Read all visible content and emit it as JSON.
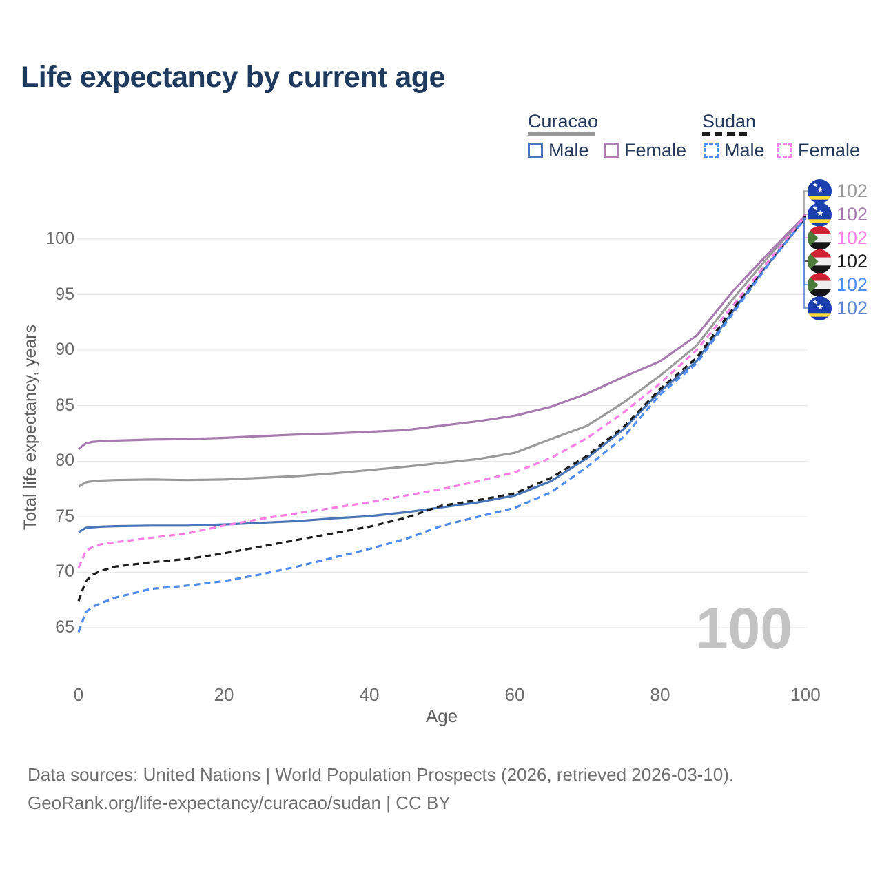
{
  "title": "Life expectancy by current age",
  "legend": {
    "countries": [
      {
        "name": "Curacao",
        "line_style": "solid",
        "line_color": "#9a9a9a",
        "sexes": [
          {
            "label": "Male",
            "color": "#4a76b8"
          },
          {
            "label": "Female",
            "color": "#b07fb4"
          }
        ]
      },
      {
        "name": "Sudan",
        "line_style": "dashed",
        "line_color": "#1c1c1c",
        "sexes": [
          {
            "label": "Male",
            "color": "#4e8cf0"
          },
          {
            "label": "Female",
            "color": "#fb80e5"
          }
        ]
      }
    ]
  },
  "chart_data": {
    "type": "line",
    "title": "Life expectancy by current age",
    "xlabel": "Age",
    "ylabel": "Total life expectancy, years",
    "xlim": [
      0,
      100
    ],
    "ylim": [
      63.5,
      103.5
    ],
    "x_ticks": [
      0,
      20,
      40,
      60,
      80,
      100
    ],
    "y_ticks": [
      65,
      70,
      75,
      80,
      85,
      90,
      95,
      100
    ],
    "grid": "horizontal",
    "legend_position": "top-right",
    "age_counter": "100",
    "ages": [
      0,
      1,
      2,
      3,
      5,
      10,
      15,
      20,
      25,
      30,
      35,
      40,
      45,
      50,
      55,
      60,
      65,
      70,
      75,
      80,
      85,
      90,
      95,
      100
    ],
    "series": [
      {
        "id": "curacao-total",
        "name": "Curacao",
        "country": "Curacao",
        "sex": "Both",
        "color": "#9a9a9a",
        "dashed": false,
        "flag": "curacao",
        "end_label": "102",
        "label_color": "#9a9a9a",
        "values": [
          77.7,
          78.1,
          78.2,
          78.25,
          78.3,
          78.35,
          78.3,
          78.35,
          78.5,
          78.65,
          78.9,
          79.2,
          79.5,
          79.85,
          80.2,
          80.75,
          82.0,
          83.2,
          85.3,
          87.7,
          90.4,
          94.6,
          98.5,
          102.1
        ]
      },
      {
        "id": "curacao-female",
        "name": "Curacao Female",
        "country": "Curacao",
        "sex": "Female",
        "color": "#a87bb0",
        "dashed": false,
        "flag": "curacao",
        "end_label": "102",
        "label_color": "#a77bb2",
        "values": [
          81.1,
          81.6,
          81.75,
          81.8,
          81.85,
          81.95,
          82.0,
          82.1,
          82.25,
          82.4,
          82.5,
          82.65,
          82.8,
          83.2,
          83.6,
          84.1,
          84.9,
          86.1,
          87.6,
          89.0,
          91.3,
          95.3,
          98.8,
          102.15
        ]
      },
      {
        "id": "sudan-female",
        "name": "Sudan Female",
        "country": "Sudan",
        "sex": "Female",
        "color": "#fb80e5",
        "dashed": true,
        "flag": "sudan",
        "end_label": "102",
        "label_color": "#fb80e5",
        "values": [
          70.4,
          71.9,
          72.3,
          72.5,
          72.7,
          73.1,
          73.5,
          74.2,
          74.8,
          75.3,
          75.8,
          76.3,
          76.9,
          77.5,
          78.2,
          79.0,
          80.3,
          82.1,
          84.4,
          87.0,
          90.0,
          94.0,
          98.1,
          102.1
        ]
      },
      {
        "id": "sudan-total",
        "name": "Sudan",
        "country": "Sudan",
        "sex": "Both",
        "color": "#1c1c1c",
        "dashed": true,
        "flag": "sudan",
        "end_label": "102",
        "label_color": "#1c1c1c",
        "values": [
          67.4,
          69.2,
          69.8,
          70.1,
          70.5,
          70.9,
          71.2,
          71.7,
          72.3,
          72.9,
          73.5,
          74.1,
          74.9,
          76.0,
          76.5,
          77.1,
          78.5,
          80.5,
          83.1,
          86.5,
          89.3,
          93.7,
          98.0,
          102.0
        ]
      },
      {
        "id": "sudan-male",
        "name": "Sudan Male",
        "country": "Sudan",
        "sex": "Male",
        "color": "#4e8cf0",
        "dashed": true,
        "flag": "sudan",
        "end_label": "102",
        "label_color": "#4e8cf0",
        "values": [
          64.6,
          66.4,
          66.9,
          67.2,
          67.7,
          68.5,
          68.8,
          69.2,
          69.8,
          70.5,
          71.3,
          72.1,
          73.0,
          74.2,
          75.0,
          75.8,
          77.2,
          79.5,
          82.2,
          86.0,
          88.8,
          93.3,
          97.8,
          101.9
        ]
      },
      {
        "id": "curacao-male",
        "name": "Curacao Male",
        "country": "Curacao",
        "sex": "Male",
        "color": "#4a76b8",
        "dashed": false,
        "flag": "curacao",
        "end_label": "102",
        "label_color": "#5a83d0",
        "values": [
          73.6,
          74.0,
          74.05,
          74.1,
          74.15,
          74.2,
          74.2,
          74.3,
          74.45,
          74.6,
          74.85,
          75.05,
          75.4,
          75.85,
          76.3,
          76.9,
          78.2,
          80.3,
          82.9,
          86.3,
          89.0,
          93.5,
          97.9,
          101.9
        ]
      }
    ]
  },
  "footer": {
    "line1": "Data sources: United Nations | World Population Prospects (2026, retrieved 2026-03-10).",
    "line2": "GeoRank.org/life-expectancy/curacao/sudan | CC BY"
  },
  "colors": {
    "title": "#1e3a5f",
    "axis_text": "#6d6d6d",
    "gridline": "#ebebeb",
    "watermark": "#c3c3c3"
  }
}
